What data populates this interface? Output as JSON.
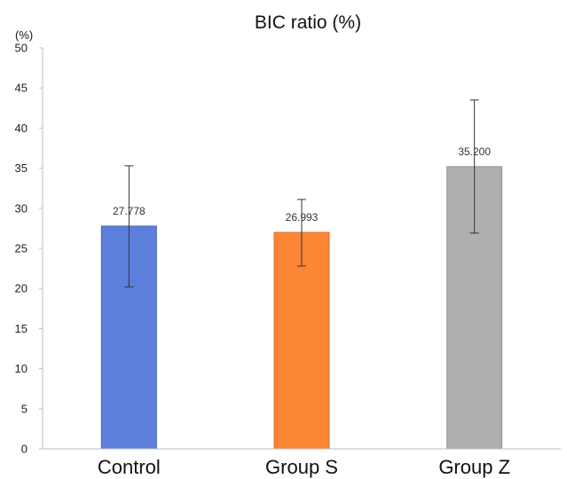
{
  "chart_data": {
    "type": "bar",
    "title": "BIC ratio (%)",
    "y_unit_label": "(%)",
    "categories": [
      "Control",
      "Group S",
      "Group Z"
    ],
    "values": [
      27.778,
      26.993,
      35.2
    ],
    "data_labels": [
      "27.778",
      "26.993",
      "35.200"
    ],
    "error_bars": [
      {
        "low": 20.2,
        "high": 35.3
      },
      {
        "low": 22.8,
        "high": 31.1
      },
      {
        "low": 26.9,
        "high": 43.5
      }
    ],
    "bar_colors": [
      "#5b7fdb",
      "#fd8536",
      "#afafaf"
    ],
    "bar_edge_colors": [
      "#4a6ac0",
      "#e0702a",
      "#979797"
    ],
    "ylim": [
      0,
      50
    ],
    "yticks": [
      "0",
      "5",
      "10",
      "15",
      "20",
      "25",
      "30",
      "35",
      "40",
      "45",
      "50"
    ],
    "grid": false,
    "legend": "none"
  }
}
